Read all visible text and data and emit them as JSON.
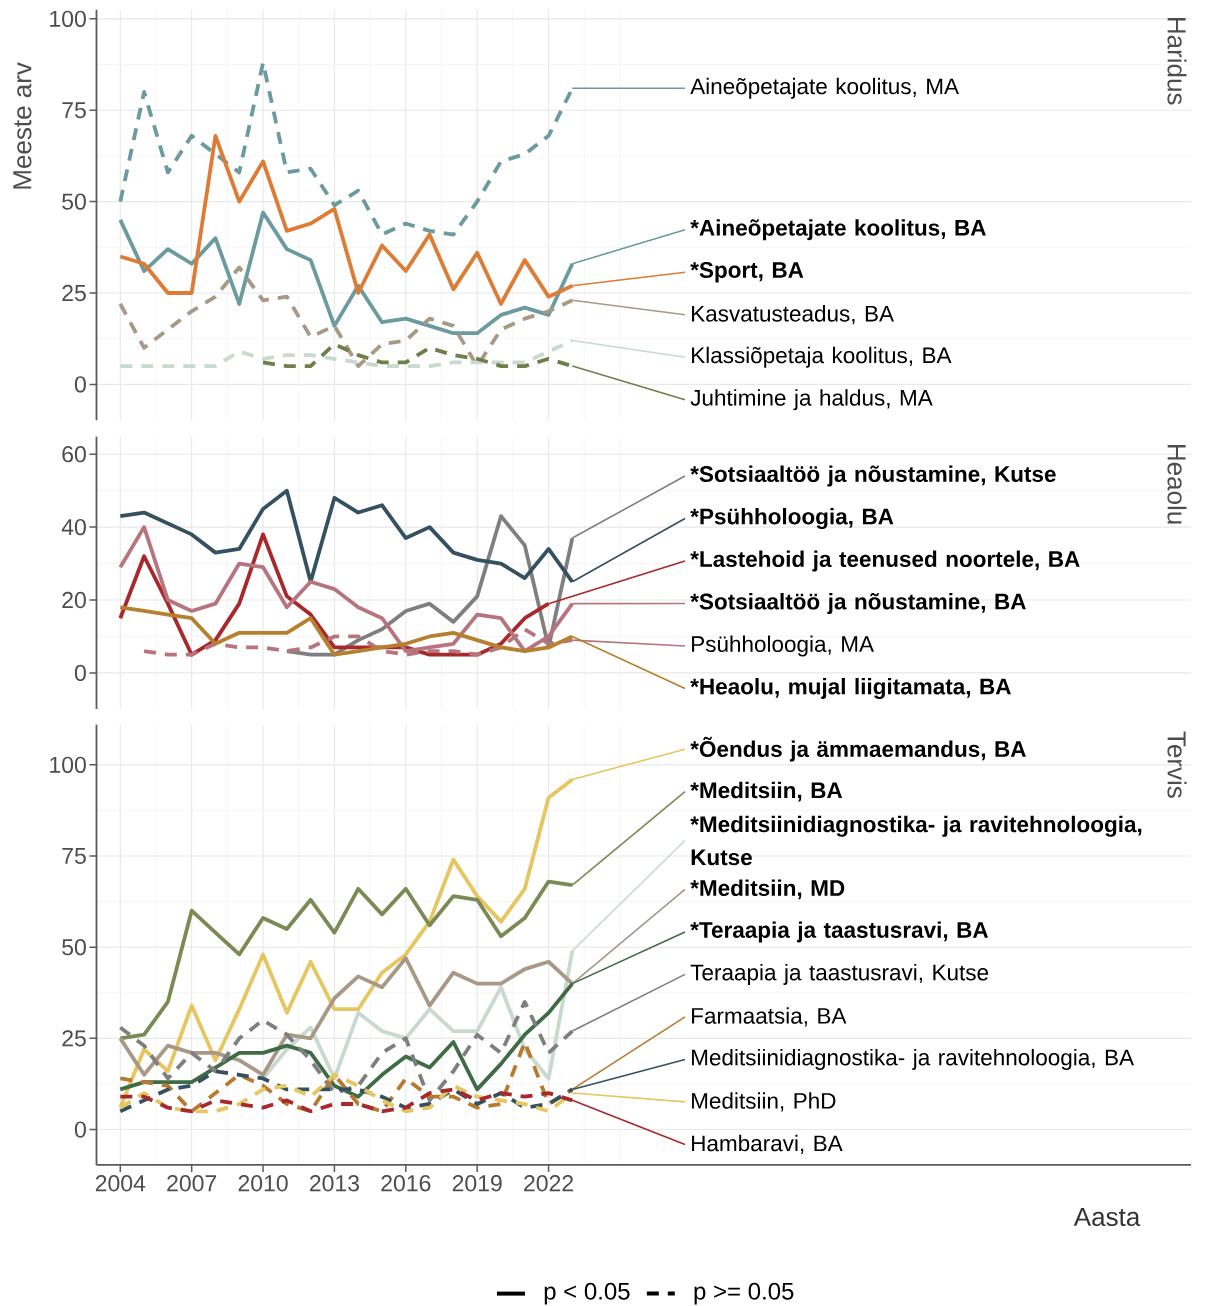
{
  "chart_data": [
    {
      "type": "line",
      "title": "Haridus",
      "ylabel": "Meeste arv",
      "x": [
        2004,
        2005,
        2006,
        2007,
        2008,
        2009,
        2010,
        2011,
        2012,
        2013,
        2014,
        2015,
        2016,
        2017,
        2018,
        2019,
        2020,
        2021,
        2022,
        2023
      ],
      "xlim": [
        2003.0,
        2049.0
      ],
      "xticks": [
        2004,
        2007,
        2010,
        2013,
        2016,
        2019,
        2022
      ],
      "ylim": [
        -9.8,
        102.5
      ],
      "yticks": [
        0,
        25,
        50,
        75,
        100
      ],
      "grid": true,
      "tick_labels": "y",
      "series": [
        {
          "name": "Aineõpetajate koolitus, MA",
          "color": "#6b9b9e",
          "line_style": "dashed",
          "values": [
            50,
            80,
            58,
            68,
            63,
            58,
            88,
            58,
            59,
            49,
            53,
            41,
            44,
            42,
            41,
            50,
            61,
            63,
            68,
            81
          ]
        },
        {
          "name": "*Aineõpetajate koolitus, BA",
          "color": "#6b9b9e",
          "line_style": "solid",
          "values": [
            45,
            31,
            37,
            33,
            40,
            22,
            47,
            37,
            34,
            16,
            27,
            17,
            18,
            16,
            14,
            14,
            19,
            21,
            19,
            33
          ]
        },
        {
          "name": "*Sport, BA",
          "color": "#de7b35",
          "line_style": "solid",
          "values": [
            35,
            33,
            25,
            25,
            68,
            50,
            61,
            42,
            44,
            48,
            25,
            38,
            31,
            41,
            26,
            36,
            22,
            34,
            24,
            27
          ]
        },
        {
          "name": "Kasvatusteadus, BA",
          "color": "#a89886",
          "line_style": "dashed",
          "values": [
            22,
            10,
            15,
            20,
            24,
            32,
            23,
            24,
            13,
            16,
            5,
            11,
            12,
            18,
            16,
            5,
            15,
            18,
            20,
            23
          ]
        },
        {
          "name": "Klassiõpetaja koolitus, BA",
          "color": "#c8dacd",
          "line_style": "dashed",
          "values": [
            5,
            5,
            5,
            5,
            5,
            9,
            7,
            8,
            8,
            7,
            6,
            5,
            5,
            5,
            6,
            6,
            6,
            6,
            9,
            12
          ]
        },
        {
          "name": "Juhtimine ja haldus, MA",
          "color": "#6f7f4a",
          "line_style": "dashed",
          "values": [
            null,
            null,
            null,
            null,
            null,
            null,
            6,
            5,
            5,
            11,
            8,
            6,
            6,
            10,
            8,
            7,
            5,
            5,
            7,
            5
          ]
        }
      ]
    },
    {
      "type": "line",
      "title": "Heaolu",
      "x": [
        2004,
        2005,
        2006,
        2007,
        2008,
        2009,
        2010,
        2011,
        2012,
        2013,
        2014,
        2015,
        2016,
        2017,
        2018,
        2019,
        2020,
        2021,
        2022,
        2023
      ],
      "xlim": [
        2003.0,
        2049.0
      ],
      "xticks": [
        2004,
        2007,
        2010,
        2013,
        2016,
        2019,
        2022
      ],
      "ylim": [
        -9.9,
        64.8
      ],
      "yticks": [
        0,
        20,
        40,
        60
      ],
      "grid": true,
      "tick_labels": "y",
      "series": [
        {
          "name": "*Sotsiaaltöö ja nõustamine, Kutse",
          "color": "#7f7f7f",
          "line_style": "solid",
          "values": [
            null,
            null,
            null,
            null,
            null,
            null,
            null,
            6,
            5,
            5,
            9,
            12,
            17,
            19,
            14,
            21,
            43,
            35,
            7,
            37
          ]
        },
        {
          "name": "*Psühholoogia, BA",
          "color": "#35505f",
          "line_style": "solid",
          "values": [
            43,
            44,
            41,
            38,
            33,
            34,
            45,
            50,
            25,
            48,
            44,
            46,
            37,
            40,
            33,
            31,
            30,
            26,
            34,
            25
          ]
        },
        {
          "name": "*Lastehoid ja teenused noortele, BA",
          "color": "#a8282c",
          "line_style": "solid",
          "values": [
            15,
            32,
            19,
            5,
            9,
            19,
            38,
            21,
            16,
            7,
            7,
            7,
            7,
            5,
            5,
            5,
            8,
            15,
            19,
            null
          ]
        },
        {
          "name": "*Sotsiaaltöö ja nõustamine, BA",
          "color": "#b8747e",
          "line_style": "solid",
          "values": [
            29,
            40,
            20,
            17,
            19,
            30,
            29,
            18,
            25,
            23,
            18,
            15,
            6,
            7,
            8,
            16,
            15,
            6,
            10,
            19
          ]
        },
        {
          "name": "Psühholoogia, MA",
          "color": "#b8747e",
          "line_style": "dashed",
          "values": [
            null,
            6,
            5,
            5,
            8,
            7,
            7,
            6,
            7,
            10,
            10,
            6,
            5,
            6,
            6,
            5,
            7,
            12,
            8,
            9
          ]
        },
        {
          "name": "*Heaolu, mujal liigitamata, BA",
          "color": "#b7802e",
          "line_style": "solid",
          "values": [
            18,
            17,
            16,
            15,
            8,
            11,
            11,
            11,
            15,
            5,
            6,
            7,
            8,
            10,
            11,
            9,
            7,
            6,
            7,
            10
          ]
        }
      ]
    },
    {
      "type": "line",
      "title": "Tervis",
      "xlabel": "Aasta",
      "x": [
        2004,
        2005,
        2006,
        2007,
        2008,
        2009,
        2010,
        2011,
        2012,
        2013,
        2014,
        2015,
        2016,
        2017,
        2018,
        2019,
        2020,
        2021,
        2022,
        2023
      ],
      "xlim": [
        2003.0,
        2049.0
      ],
      "xticks": [
        2004,
        2007,
        2010,
        2013,
        2016,
        2019,
        2022
      ],
      "ylim": [
        -9.7,
        111.0
      ],
      "yticks": [
        0,
        25,
        50,
        75,
        100
      ],
      "grid": true,
      "annotations": [
        "p < 0.05",
        "p >= 0.05"
      ],
      "series": [
        {
          "name": "*Õendus ja ämmaemandus, BA",
          "color": "#e6c660",
          "line_style": "solid",
          "values": [
            6,
            22,
            16,
            34,
            19,
            33,
            48,
            32,
            46,
            33,
            33,
            43,
            48,
            57,
            74,
            64,
            57,
            66,
            91,
            96
          ]
        },
        {
          "name": "*Meditsiin, BA",
          "color": "#7b8a52",
          "line_style": "solid",
          "values": [
            25,
            26,
            35,
            60,
            54,
            48,
            58,
            55,
            63,
            54,
            66,
            59,
            66,
            56,
            64,
            63,
            53,
            58,
            68,
            67
          ]
        },
        {
          "name": "*Meditsiinidiagnostika- ja ravitehnoloogia, Kutse",
          "color": "#c8dacd",
          "line_style": "solid",
          "values": [
            null,
            null,
            null,
            null,
            null,
            null,
            14,
            22,
            28,
            14,
            32,
            27,
            25,
            33,
            27,
            27,
            39,
            22,
            14,
            49
          ]
        },
        {
          "name": "*Meditsiin, MD",
          "color": "#a89886",
          "line_style": "solid",
          "values": [
            25,
            15,
            23,
            21,
            21,
            19,
            15,
            26,
            25,
            36,
            42,
            39,
            47,
            34,
            43,
            40,
            40,
            44,
            46,
            40
          ]
        },
        {
          "name": "*Teraapia ja taastusravi, BA",
          "color": "#3f6b45",
          "line_style": "solid",
          "values": [
            11,
            13,
            13,
            13,
            17,
            21,
            21,
            23,
            21,
            12,
            9,
            15,
            20,
            17,
            24,
            11,
            18,
            26,
            32,
            40
          ]
        },
        {
          "name": "Teraapia ja taastusravi, Kutse",
          "color": "#7f7f7f",
          "line_style": "dashed",
          "values": [
            28,
            23,
            14,
            21,
            16,
            25,
            30,
            26,
            19,
            10,
            12,
            21,
            25,
            8,
            16,
            26,
            21,
            35,
            21,
            27
          ]
        },
        {
          "name": "Farmaatsia, BA",
          "color": "#b87a30",
          "line_style": "dashed",
          "values": [
            14,
            13,
            12,
            5,
            10,
            15,
            12,
            7,
            5,
            15,
            7,
            5,
            14,
            9,
            9,
            6,
            7,
            24,
            7,
            11
          ]
        },
        {
          "name": "Meditsiinidiagnostika- ja ravitehnoloogia, BA",
          "color": "#35505f",
          "line_style": "dashed",
          "values": [
            5,
            8,
            11,
            12,
            16,
            15,
            14,
            11,
            11,
            11,
            11,
            9,
            6,
            7,
            11,
            7,
            10,
            6,
            7,
            11
          ]
        },
        {
          "name": "Meditsiin, PhD",
          "color": "#e6c660",
          "line_style": "dashed",
          "values": [
            6,
            10,
            6,
            5,
            5,
            7,
            11,
            12,
            9,
            15,
            12,
            8,
            5,
            6,
            12,
            9,
            8,
            7,
            5,
            10
          ]
        },
        {
          "name": "Hambaravi, BA",
          "color": "#a8282c",
          "line_style": "dashed",
          "values": [
            9,
            9,
            6,
            5,
            8,
            7,
            6,
            8,
            5,
            7,
            7,
            5,
            6,
            10,
            11,
            8,
            10,
            9,
            10,
            8
          ]
        }
      ]
    }
  ]
}
